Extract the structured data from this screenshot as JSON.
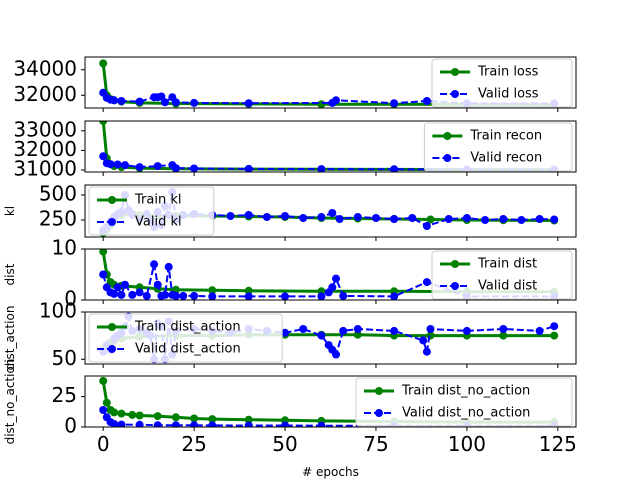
{
  "chart_data": [
    {
      "type": "line",
      "ylabel": "",
      "ylim": [
        31000,
        35000
      ],
      "yticks": [
        32000,
        34000
      ],
      "ytick_labels": [
        "32000",
        "34000"
      ],
      "legend_position": "upper-right",
      "series": [
        {
          "name": "Train loss",
          "color": "#008000",
          "marker": "circle",
          "x": [
            0,
            1,
            2,
            3,
            5,
            10,
            20,
            40,
            60,
            80,
            100,
            124
          ],
          "y": [
            34500,
            32000,
            31700,
            31600,
            31500,
            31400,
            31350,
            31320,
            31300,
            31290,
            31280,
            31270
          ]
        },
        {
          "name": "Valid loss",
          "color": "#0000ff",
          "marker": "circle",
          "dashed": true,
          "x": [
            0,
            1,
            2,
            3,
            5,
            10,
            14,
            15,
            16,
            17,
            19,
            20,
            25,
            40,
            63,
            64,
            80,
            89,
            100,
            124
          ],
          "y": [
            32200,
            31800,
            31650,
            31600,
            31550,
            31500,
            31850,
            31850,
            31900,
            31450,
            31850,
            31450,
            31400,
            31380,
            31400,
            31600,
            31380,
            31550,
            31370,
            31360
          ]
        }
      ]
    },
    {
      "type": "line",
      "ylabel": "",
      "ylim": [
        30900,
        33500
      ],
      "yticks": [
        31000,
        32000,
        33000
      ],
      "ytick_labels": [
        "31000",
        "32000",
        "33000"
      ],
      "legend_position": "upper-right",
      "series": [
        {
          "name": "Train recon",
          "color": "#008000",
          "marker": "circle",
          "x": [
            0,
            1,
            2,
            3,
            5,
            10,
            20,
            40,
            60,
            80,
            100,
            124
          ],
          "y": [
            33500,
            31600,
            31300,
            31200,
            31150,
            31100,
            31070,
            31050,
            31040,
            31030,
            31020,
            31010
          ]
        },
        {
          "name": "Valid recon",
          "color": "#0000ff",
          "marker": "circle",
          "dashed": true,
          "x": [
            0,
            1,
            2,
            4,
            6,
            10,
            15,
            19,
            20,
            25,
            40,
            60,
            80,
            100,
            124
          ],
          "y": [
            31700,
            31350,
            31300,
            31280,
            31250,
            31150,
            31200,
            31250,
            31100,
            31080,
            31060,
            31050,
            31040,
            31030,
            31020
          ]
        }
      ]
    },
    {
      "type": "line",
      "ylabel": "kl",
      "ylim": [
        80,
        600
      ],
      "yticks": [
        250,
        500
      ],
      "ytick_labels": [
        "250",
        "500"
      ],
      "legend_position": "upper-left",
      "series": [
        {
          "name": "Train kl",
          "color": "#008000",
          "marker": "circle",
          "x": [
            0,
            1,
            2,
            3,
            5,
            8,
            10,
            15,
            20,
            30,
            40,
            50,
            60,
            70,
            80,
            90,
            100,
            110,
            124
          ],
          "y": [
            120,
            150,
            200,
            250,
            300,
            310,
            300,
            290,
            290,
            290,
            285,
            280,
            270,
            265,
            260,
            255,
            250,
            248,
            245
          ]
        },
        {
          "name": "Valid kl",
          "color": "#0000ff",
          "marker": "circle",
          "dashed": true,
          "x": [
            0,
            1,
            2,
            3,
            4,
            5,
            6,
            7,
            8,
            10,
            12,
            13,
            14,
            15,
            16,
            17,
            18,
            19,
            20,
            22,
            25,
            30,
            35,
            40,
            45,
            50,
            55,
            60,
            63,
            65,
            70,
            75,
            80,
            85,
            89,
            95,
            100,
            105,
            110,
            115,
            120,
            124
          ],
          "y": [
            150,
            180,
            240,
            280,
            310,
            330,
            500,
            350,
            300,
            260,
            310,
            250,
            180,
            330,
            200,
            390,
            300,
            530,
            250,
            300,
            310,
            300,
            290,
            300,
            280,
            290,
            270,
            280,
            320,
            260,
            280,
            270,
            260,
            270,
            190,
            260,
            270,
            250,
            260,
            250,
            260,
            255
          ]
        }
      ]
    },
    {
      "type": "line",
      "ylabel": "dist",
      "ylim": [
        0,
        10
      ],
      "yticks": [
        0,
        10
      ],
      "ytick_labels": [
        "0",
        "10"
      ],
      "legend_position": "upper-right",
      "series": [
        {
          "name": "Train dist",
          "color": "#008000",
          "marker": "circle",
          "x": [
            0,
            1,
            2,
            3,
            5,
            10,
            15,
            20,
            30,
            40,
            60,
            80,
            100,
            124
          ],
          "y": [
            9.5,
            5,
            3.5,
            3,
            2.8,
            2.5,
            2.2,
            2.0,
            1.9,
            1.8,
            1.7,
            1.7,
            1.6,
            1.6
          ]
        },
        {
          "name": "Valid dist",
          "color": "#0000ff",
          "marker": "circle",
          "dashed": true,
          "x": [
            0,
            1,
            2,
            3,
            4,
            5,
            6,
            8,
            10,
            12,
            14,
            15,
            16,
            17,
            18,
            19,
            20,
            22,
            25,
            30,
            40,
            50,
            60,
            62,
            63,
            64,
            66,
            80,
            89,
            100,
            124
          ],
          "y": [
            5,
            2.5,
            1.5,
            1.2,
            2.5,
            1.0,
            3.0,
            1.0,
            1.5,
            0.8,
            7.0,
            3.0,
            0.8,
            1.0,
            6.5,
            1.0,
            0.8,
            0.8,
            0.8,
            0.7,
            0.7,
            0.7,
            0.7,
            1.5,
            2.5,
            4.2,
            0.8,
            0.7,
            3.5,
            0.7,
            0.7
          ]
        }
      ]
    },
    {
      "type": "line",
      "ylabel": "dist_action",
      "ylim": [
        45,
        100
      ],
      "yticks": [
        50,
        100
      ],
      "ytick_labels": [
        "50",
        "100"
      ],
      "legend_position": "upper-left",
      "series": [
        {
          "name": "Train dist_action",
          "color": "#008000",
          "marker": "circle",
          "x": [
            0,
            1,
            2,
            3,
            5,
            10,
            20,
            30,
            40,
            50,
            60,
            70,
            80,
            90,
            100,
            110,
            124
          ],
          "y": [
            60,
            65,
            68,
            70,
            72,
            74,
            75,
            75,
            76,
            76,
            76,
            76,
            75,
            75,
            75,
            75,
            75
          ]
        },
        {
          "name": "Valid dist_action",
          "color": "#0000ff",
          "marker": "circle",
          "dashed": true,
          "x": [
            0,
            1,
            2,
            3,
            4,
            5,
            6,
            7,
            8,
            10,
            12,
            13,
            14,
            15,
            16,
            17,
            18,
            19,
            20,
            25,
            30,
            35,
            40,
            45,
            50,
            55,
            60,
            62,
            63,
            64,
            66,
            70,
            80,
            88,
            89,
            90,
            100,
            110,
            120,
            124
          ],
          "y": [
            58,
            65,
            60,
            72,
            75,
            78,
            85,
            95,
            80,
            82,
            78,
            75,
            50,
            88,
            85,
            50,
            90,
            55,
            80,
            82,
            80,
            78,
            82,
            80,
            78,
            82,
            75,
            65,
            60,
            55,
            80,
            82,
            80,
            70,
            58,
            82,
            80,
            82,
            80,
            85
          ]
        }
      ]
    },
    {
      "type": "line",
      "ylabel": "dist_no_action",
      "xlabel": "# epochs",
      "ylim": [
        0,
        42
      ],
      "yticks": [
        0,
        25
      ],
      "ytick_labels": [
        "0",
        "25"
      ],
      "xlim": [
        -5,
        130
      ],
      "xticks": [
        0,
        25,
        50,
        75,
        100,
        125
      ],
      "xtick_labels": [
        "0",
        "25",
        "50",
        "75",
        "100",
        "125"
      ],
      "legend_position": "upper-right",
      "series": [
        {
          "name": "Train dist_no_action",
          "color": "#008000",
          "marker": "circle",
          "x": [
            0,
            1,
            2,
            3,
            5,
            8,
            10,
            15,
            20,
            25,
            30,
            40,
            50,
            60,
            80,
            100,
            124
          ],
          "y": [
            38,
            20,
            14,
            12,
            11,
            10,
            9.5,
            9,
            8,
            7,
            6.5,
            6,
            5.5,
            5,
            4.5,
            4,
            4
          ]
        },
        {
          "name": "Valid dist_no_action",
          "color": "#0000ff",
          "marker": "circle",
          "dashed": true,
          "x": [
            0,
            1,
            2,
            3,
            5,
            10,
            15,
            20,
            25,
            30,
            40,
            50,
            60,
            80,
            100,
            124
          ],
          "y": [
            14,
            8,
            4,
            2.5,
            2,
            1.8,
            1.5,
            1.5,
            1.4,
            1.3,
            1.2,
            1.2,
            1.1,
            1.0,
            1.0,
            1.0
          ]
        }
      ]
    }
  ]
}
